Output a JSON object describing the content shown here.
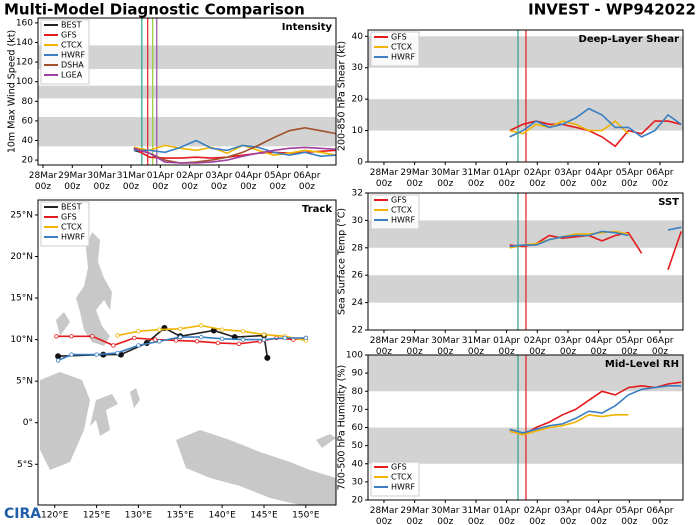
{
  "header": {
    "title": "Multi-Model Diagnostic Comparison",
    "storm": "INVEST - WP942022",
    "logo": "CIRA"
  },
  "chart_data": [
    {
      "type": "line",
      "title": "Intensity",
      "ylabel": "10m Max Wind Speed (kt)",
      "xlim": [
        -0.17,
        9.99
      ],
      "ylim": [
        15,
        165
      ],
      "xticks": [
        {
          "value": 0,
          "label": "28Mar 00z"
        },
        {
          "value": 1,
          "label": "29Mar 00z"
        },
        {
          "value": 2,
          "label": "30Mar 00z"
        },
        {
          "value": 3,
          "label": "31Mar 00z"
        },
        {
          "value": 4,
          "label": "01Apr 00z"
        },
        {
          "value": 5,
          "label": "02Apr 00z"
        },
        {
          "value": 6,
          "label": "03Apr 00z"
        },
        {
          "value": 7,
          "label": "04Apr 00z"
        },
        {
          "value": 8,
          "label": "05Apr 00z"
        },
        {
          "value": 9,
          "label": "06Apr 00z"
        }
      ],
      "yticks": [
        20,
        40,
        60,
        80,
        100,
        120,
        140,
        160
      ],
      "bands": [
        [
          34,
          64
        ],
        [
          83,
          96
        ],
        [
          113,
          137
        ]
      ],
      "vlines": [
        {
          "x": 3.37,
          "color": "#2ca089"
        },
        {
          "x": 3.57,
          "color": "#e41a1c"
        },
        {
          "x": 3.74,
          "color": "#9acd32"
        },
        {
          "x": 3.88,
          "color": "#984ea3"
        }
      ],
      "legend": "upper left",
      "series": [
        {
          "name": "BEST",
          "color": "#222222",
          "x": [
            3.1,
            3.35
          ],
          "values": [
            30,
            28
          ]
        },
        {
          "name": "GFS",
          "color": "#e41a1c",
          "x": [
            3.1,
            3.63,
            4.16,
            4.69,
            5.22,
            5.75,
            6.28,
            6.81,
            7.34,
            7.87,
            8.4,
            8.93,
            9.46,
            9.99
          ],
          "values": [
            32,
            23,
            22,
            22,
            23,
            22,
            23,
            25,
            27,
            28,
            27,
            28,
            29,
            30
          ]
        },
        {
          "name": "CTCX",
          "color": "#f0b400",
          "x": [
            3.1,
            3.63,
            4.16,
            4.69,
            5.22,
            5.75,
            6.28,
            6.81,
            7.34,
            7.87,
            8.4,
            8.93,
            9.46,
            9.99
          ],
          "values": [
            33,
            30,
            35,
            32,
            30,
            33,
            27,
            35,
            30,
            25,
            27,
            30,
            28,
            25
          ]
        },
        {
          "name": "HWRF",
          "color": "#3a7fc1",
          "x": [
            3.1,
            3.63,
            4.16,
            4.69,
            5.22,
            5.75,
            6.28,
            6.81,
            7.34,
            7.87,
            8.4,
            8.93,
            9.46,
            9.99
          ],
          "values": [
            30,
            30,
            28,
            33,
            40,
            32,
            30,
            35,
            33,
            28,
            25,
            28,
            24,
            25
          ]
        },
        {
          "name": "DSHA",
          "color": "#a0522d",
          "x": [
            3.1,
            3.63,
            4.16,
            4.69,
            5.22,
            5.75,
            6.28,
            6.81,
            7.34,
            7.87,
            8.4,
            8.93,
            9.46,
            9.99
          ],
          "values": [
            32,
            27,
            20,
            17,
            18,
            20,
            23,
            28,
            35,
            43,
            50,
            53,
            50,
            47
          ]
        },
        {
          "name": "LGEA",
          "color": "#a040a0",
          "x": [
            3.1,
            3.63,
            4.16,
            4.69,
            5.22,
            5.75,
            6.28,
            6.81,
            7.34,
            7.87,
            8.4,
            8.93,
            9.46,
            9.99
          ],
          "values": [
            32,
            27,
            18,
            17,
            17,
            18,
            20,
            24,
            27,
            30,
            32,
            33,
            32,
            31
          ]
        }
      ]
    },
    {
      "type": "track",
      "title": "Track",
      "xlim": [
        118,
        153.6
      ],
      "ylim": [
        -9.9,
        26.8
      ],
      "xticks": [
        {
          "value": 120,
          "label": "120°E"
        },
        {
          "value": 125,
          "label": "125°E"
        },
        {
          "value": 130,
          "label": "130°E"
        },
        {
          "value": 135,
          "label": "135°E"
        },
        {
          "value": 140,
          "label": "140°E"
        },
        {
          "value": 145,
          "label": "145°E"
        },
        {
          "value": 150,
          "label": "150°E"
        }
      ],
      "yticks": [
        {
          "value": -5,
          "label": "5°S"
        },
        {
          "value": 0,
          "label": "0°"
        },
        {
          "value": 5,
          "label": "5°N"
        },
        {
          "value": 10,
          "label": "10°N"
        },
        {
          "value": 15,
          "label": "15°N"
        },
        {
          "value": 20,
          "label": "20°N"
        },
        {
          "value": 25,
          "label": "25°N"
        }
      ],
      "legend": "upper left",
      "series": [
        {
          "name": "BEST",
          "color": "#222222",
          "x": [
            120.4,
            125.8,
            127.9,
            131,
            133.1,
            135,
            139,
            141.5,
            145,
            145.4
          ],
          "values": [
            8.0,
            8.2,
            8.2,
            9.6,
            11.4,
            10.4,
            11.1,
            10.3,
            10.5,
            7.8
          ]
        },
        {
          "name": "GFS",
          "color": "#e41a1c",
          "x": [
            120.2,
            122,
            124.5,
            127,
            129.5,
            132,
            134.5,
            137,
            139.5,
            142,
            144.5,
            146.5,
            148.5,
            150
          ],
          "values": [
            10.4,
            10.4,
            10.4,
            9.3,
            10.2,
            10.0,
            9.9,
            9.8,
            9.6,
            9.5,
            9.8,
            10.2,
            10.0,
            10.2
          ]
        },
        {
          "name": "CTCX",
          "color": "#f0b400",
          "x": [
            127.5,
            130,
            132.5,
            135,
            137.5,
            140,
            142.5,
            145,
            147.5,
            150
          ],
          "values": [
            10.5,
            11.0,
            11.2,
            11.3,
            11.7,
            11.2,
            11.0,
            10.6,
            10.4,
            9.9
          ]
        },
        {
          "name": "HWRF",
          "color": "#3a7fc1",
          "x": [
            120.4,
            122,
            125,
            127.5,
            130,
            132.5,
            135,
            137.5,
            140,
            142.5,
            145,
            147.5,
            150
          ],
          "values": [
            7.5,
            8.2,
            8.2,
            8.4,
            9.3,
            9.8,
            10.3,
            10.3,
            10.1,
            10.0,
            10.0,
            10.2,
            10.2
          ]
        }
      ]
    },
    {
      "type": "line",
      "title": "Deep-Layer Shear",
      "ylabel": "200-850 hPa Shear (kt)",
      "xlim": [
        -0.52,
        9.75
      ],
      "ylim": [
        0,
        42
      ],
      "xticks": [
        {
          "value": 0,
          "label": "28Mar 00z"
        },
        {
          "value": 1,
          "label": "29Mar 00z"
        },
        {
          "value": 2,
          "label": "30Mar 00z"
        },
        {
          "value": 3,
          "label": "31Mar 00z"
        },
        {
          "value": 4,
          "label": "01Apr 00z"
        },
        {
          "value": 5,
          "label": "02Apr 00z"
        },
        {
          "value": 6,
          "label": "03Apr 00z"
        },
        {
          "value": 7,
          "label": "04Apr 00z"
        },
        {
          "value": 8,
          "label": "05Apr 00z"
        },
        {
          "value": 9,
          "label": "06Apr 00z"
        }
      ],
      "yticks": [
        0,
        10,
        20,
        30,
        40
      ],
      "bands": [
        [
          10,
          20
        ],
        [
          30,
          40
        ]
      ],
      "vlines": [
        {
          "x": 4.37,
          "color": "#2ca089"
        },
        {
          "x": 4.63,
          "color": "#e41a1c"
        }
      ],
      "legend": "upper left",
      "series": [
        {
          "name": "GFS",
          "color": "#e41a1c",
          "x": [
            4.1,
            4.53,
            4.96,
            5.39,
            5.82,
            6.25,
            6.68,
            7.11,
            7.54,
            7.97,
            8.4,
            8.83,
            9.26,
            9.69
          ],
          "values": [
            10,
            12,
            13,
            12,
            12,
            11,
            10,
            8,
            5,
            10,
            9,
            13,
            13,
            12
          ]
        },
        {
          "name": "CTCX",
          "color": "#f0b400",
          "x": [
            4.1,
            4.53,
            4.96,
            5.39,
            5.82,
            6.25,
            6.68,
            7.11,
            7.54,
            7.97
          ],
          "values": [
            10,
            9,
            12,
            11,
            13,
            12,
            10,
            10,
            13,
            9
          ]
        },
        {
          "name": "HWRF",
          "color": "#3a7fc1",
          "x": [
            4.1,
            4.53,
            4.96,
            5.39,
            5.82,
            6.25,
            6.68,
            7.11,
            7.54,
            7.97,
            8.4,
            8.83,
            9.26,
            9.69
          ],
          "values": [
            8,
            10,
            13,
            11,
            12,
            14,
            17,
            15,
            11,
            11,
            8,
            10,
            15,
            12
          ]
        }
      ]
    },
    {
      "type": "line",
      "title": "SST",
      "ylabel": "Sea Surface Temp (°C)",
      "xlim": [
        -0.52,
        9.75
      ],
      "ylim": [
        22,
        32
      ],
      "xticks": [
        {
          "value": 0,
          "label": "28Mar 00z"
        },
        {
          "value": 1,
          "label": "29Mar 00z"
        },
        {
          "value": 2,
          "label": "30Mar 00z"
        },
        {
          "value": 3,
          "label": "31Mar 00z"
        },
        {
          "value": 4,
          "label": "01Apr 00z"
        },
        {
          "value": 5,
          "label": "02Apr 00z"
        },
        {
          "value": 6,
          "label": "03Apr 00z"
        },
        {
          "value": 7,
          "label": "04Apr 00z"
        },
        {
          "value": 8,
          "label": "05Apr 00z"
        },
        {
          "value": 9,
          "label": "06Apr 00z"
        }
      ],
      "yticks": [
        22,
        24,
        26,
        28,
        30,
        32
      ],
      "bands": [
        [
          24,
          26
        ],
        [
          28,
          30
        ]
      ],
      "vlines": [
        {
          "x": 4.37,
          "color": "#2ca089"
        },
        {
          "x": 4.63,
          "color": "#e41a1c"
        }
      ],
      "legend": "upper left",
      "series": [
        {
          "name": "GFS",
          "color": "#e41a1c",
          "x": [
            4.1,
            4.53,
            4.96,
            5.39,
            5.82,
            6.25,
            6.68,
            7.11,
            7.54,
            7.97,
            8.4,
            8.83,
            9.26,
            9.69
          ],
          "values": [
            28.2,
            28.1,
            28.3,
            28.9,
            28.7,
            28.8,
            28.9,
            28.5,
            28.9,
            29.1,
            27.6,
            null,
            26.4,
            29.2
          ]
        },
        {
          "name": "CTCX",
          "color": "#f0b400",
          "x": [
            4.1,
            4.53,
            4.96,
            5.39,
            5.82,
            6.25,
            6.68,
            7.11,
            7.54,
            7.97
          ],
          "values": [
            28.0,
            28.2,
            28.3,
            28.6,
            28.8,
            29.0,
            29.0,
            29.1,
            29.2,
            29.0
          ]
        },
        {
          "name": "HWRF",
          "color": "#3a7fc1",
          "x": [
            4.1,
            4.53,
            4.96,
            5.39,
            5.82,
            6.25,
            6.68,
            7.11,
            7.54,
            7.97,
            8.4,
            8.83,
            9.26,
            9.69
          ],
          "values": [
            28.1,
            28.2,
            28.2,
            28.6,
            28.8,
            28.9,
            28.9,
            29.2,
            29.1,
            28.9,
            null,
            null,
            29.3,
            29.5
          ]
        }
      ]
    },
    {
      "type": "line",
      "title": "Mid-Level RH",
      "ylabel": "700-500 hPa Humidity (%)",
      "xlim": [
        -0.52,
        9.75
      ],
      "ylim": [
        20,
        100
      ],
      "xticks": [
        {
          "value": 0,
          "label": "28Mar 00z"
        },
        {
          "value": 1,
          "label": "29Mar 00z"
        },
        {
          "value": 2,
          "label": "30Mar 00z"
        },
        {
          "value": 3,
          "label": "31Mar 00z"
        },
        {
          "value": 4,
          "label": "01Apr 00z"
        },
        {
          "value": 5,
          "label": "02Apr 00z"
        },
        {
          "value": 6,
          "label": "03Apr 00z"
        },
        {
          "value": 7,
          "label": "04Apr 00z"
        },
        {
          "value": 8,
          "label": "05Apr 00z"
        },
        {
          "value": 9,
          "label": "06Apr 00z"
        }
      ],
      "yticks": [
        20,
        30,
        40,
        50,
        60,
        70,
        80,
        90,
        100
      ],
      "bands": [
        [
          40,
          60
        ],
        [
          80,
          100
        ]
      ],
      "vlines": [
        {
          "x": 4.37,
          "color": "#2ca089"
        },
        {
          "x": 4.63,
          "color": "#e41a1c"
        }
      ],
      "legend": "lower left",
      "series": [
        {
          "name": "GFS",
          "color": "#e41a1c",
          "x": [
            4.1,
            4.53,
            4.96,
            5.39,
            5.82,
            6.25,
            6.68,
            7.11,
            7.54,
            7.97,
            8.4,
            8.83,
            9.26,
            9.69
          ],
          "values": [
            58,
            56,
            60,
            63,
            67,
            70,
            75,
            80,
            78,
            82,
            83,
            82,
            84,
            85
          ]
        },
        {
          "name": "CTCX",
          "color": "#f0b400",
          "x": [
            4.1,
            4.53,
            4.96,
            5.39,
            5.82,
            6.25,
            6.68,
            7.11,
            7.54,
            7.97
          ],
          "values": [
            58,
            56,
            58,
            60,
            61,
            63,
            67,
            66,
            67,
            67
          ]
        },
        {
          "name": "HWRF",
          "color": "#3a7fc1",
          "x": [
            4.1,
            4.53,
            4.96,
            5.39,
            5.82,
            6.25,
            6.68,
            7.11,
            7.54,
            7.97,
            8.4,
            8.83,
            9.26,
            9.69
          ],
          "values": [
            59,
            57,
            59,
            61,
            62,
            65,
            69,
            68,
            72,
            78,
            81,
            82,
            83,
            83
          ]
        }
      ]
    }
  ]
}
